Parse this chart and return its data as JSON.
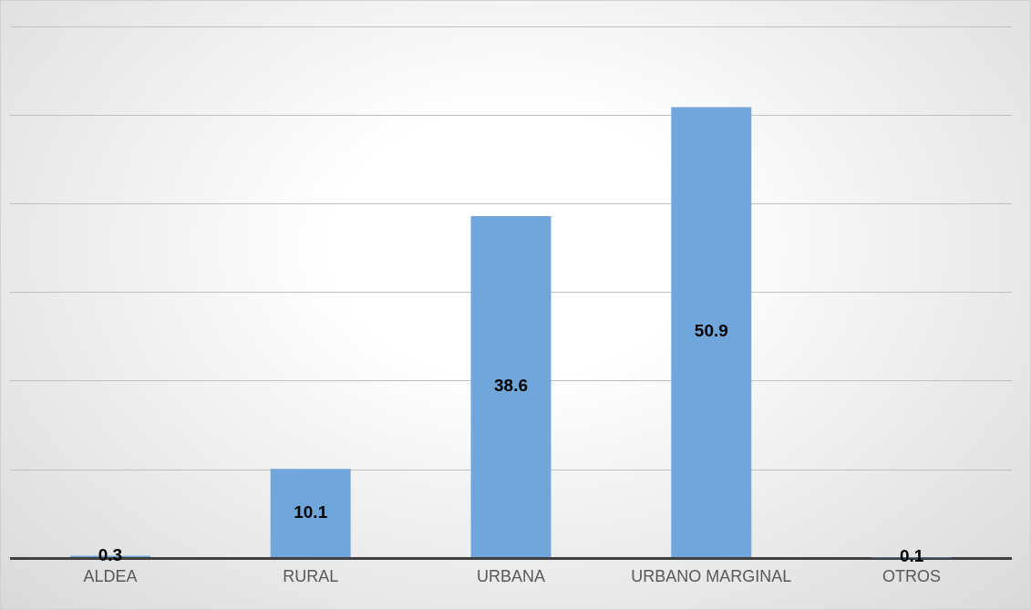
{
  "chart_data": {
    "type": "bar",
    "categories": [
      "ALDEA",
      "RURAL",
      "URBANA",
      "URBANO MARGINAL",
      "OTROS"
    ],
    "values": [
      0.3,
      10.1,
      38.6,
      50.9,
      0.1
    ],
    "color": "#70a6da",
    "ylim": [
      0,
      60
    ],
    "yticks": [
      {
        "value": 0,
        "label": null
      },
      {
        "value": 10,
        "label": null
      },
      {
        "value": 20,
        "label": null
      },
      {
        "value": 30,
        "label": null
      },
      {
        "value": 40,
        "label": null
      },
      {
        "value": 50,
        "label": null
      },
      {
        "value": 60,
        "label": null
      }
    ],
    "grid": "y",
    "tick_labels": "x",
    "data_labels": true,
    "legend": false
  }
}
